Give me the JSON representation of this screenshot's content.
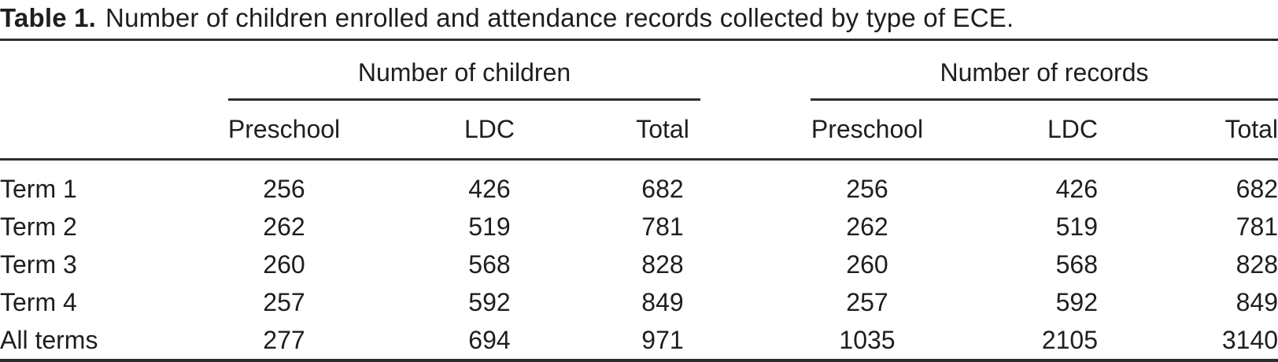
{
  "colors": {
    "background": "#ffffff",
    "text": "#1e1e1e",
    "rule": "#2d2d2d"
  },
  "title": {
    "label": "Table 1.",
    "text": "Number of children enrolled and attendance records collected by type of ECE."
  },
  "table": {
    "groups": [
      {
        "label": "Number of children",
        "columns": [
          "Preschool",
          "LDC",
          "Total"
        ]
      },
      {
        "label": "Number of records",
        "columns": [
          "Preschool",
          "LDC",
          "Total"
        ]
      }
    ],
    "rows": [
      {
        "label": "Term 1",
        "children": [
          256,
          426,
          682
        ],
        "records": [
          256,
          426,
          682
        ]
      },
      {
        "label": "Term 2",
        "children": [
          262,
          519,
          781
        ],
        "records": [
          262,
          519,
          781
        ]
      },
      {
        "label": "Term 3",
        "children": [
          260,
          568,
          828
        ],
        "records": [
          260,
          568,
          828
        ]
      },
      {
        "label": "Term 4",
        "children": [
          257,
          592,
          849
        ],
        "records": [
          257,
          592,
          849
        ]
      },
      {
        "label": "All terms",
        "children": [
          277,
          694,
          971
        ],
        "records": [
          1035,
          2105,
          3140
        ]
      }
    ]
  }
}
